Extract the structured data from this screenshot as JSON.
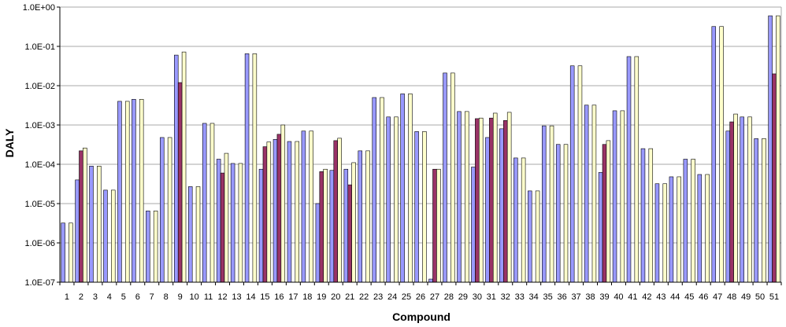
{
  "chart_data": {
    "type": "bar",
    "xlabel": "Compound",
    "ylabel": "DALY",
    "yscale": "log",
    "ylim": [
      1e-07,
      1
    ],
    "y_ticks": [
      1e-07,
      1e-06,
      1e-05,
      0.0001,
      0.001,
      0.01,
      0.1,
      1
    ],
    "y_tick_labels": [
      "1.0E-07",
      "1.0E-06",
      "1.0E-05",
      "1.0E-04",
      "1.0E-03",
      "1.0E-02",
      "1.0E-01",
      "1.0E+00"
    ],
    "grid": "horizontal",
    "legend": "none",
    "categories": [
      "1",
      "2",
      "3",
      "4",
      "5",
      "6",
      "7",
      "8",
      "9",
      "10",
      "11",
      "12",
      "13",
      "14",
      "15",
      "16",
      "17",
      "18",
      "19",
      "20",
      "21",
      "22",
      "23",
      "24",
      "25",
      "26",
      "27",
      "28",
      "29",
      "30",
      "31",
      "32",
      "33",
      "34",
      "35",
      "36",
      "37",
      "38",
      "39",
      "40",
      "41",
      "42",
      "43",
      "44",
      "45",
      "46",
      "47",
      "48",
      "49",
      "50",
      "51"
    ],
    "series": [
      {
        "color": "#9999ff",
        "values": [
          3.2e-06,
          4e-05,
          9e-05,
          2.2e-05,
          0.004,
          0.0045,
          6.5e-06,
          0.00048,
          0.06,
          2.7e-05,
          0.0011,
          0.000135,
          0.000105,
          0.065,
          7.5e-05,
          0.00043,
          0.00038,
          0.0007,
          1e-05,
          7e-05,
          7.5e-05,
          0.00022,
          0.005,
          0.0016,
          0.0062,
          0.00068,
          1.2e-07,
          0.021,
          0.0022,
          8.5e-05,
          0.00048,
          0.0008,
          0.000145,
          2.1e-05,
          0.00095,
          0.00032,
          0.032,
          0.0032,
          6.2e-05,
          0.0023,
          0.055,
          0.00025,
          3.2e-05,
          4.8e-05,
          0.000135,
          5.5e-05,
          0.32,
          0.0007,
          0.0016,
          0.00045,
          0.6
        ]
      },
      {
        "color": "#993366",
        "values": [
          null,
          0.00022,
          null,
          null,
          null,
          null,
          null,
          null,
          0.012,
          null,
          null,
          6e-05,
          null,
          null,
          0.00028,
          0.00058,
          null,
          null,
          6.5e-05,
          0.0004,
          3e-05,
          null,
          null,
          null,
          null,
          null,
          7.5e-05,
          null,
          null,
          0.00145,
          0.0015,
          0.0013,
          null,
          null,
          null,
          null,
          null,
          null,
          0.00032,
          null,
          null,
          null,
          null,
          null,
          null,
          null,
          null,
          0.0012,
          null,
          null,
          0.02
        ]
      },
      {
        "color": "#ffffcc",
        "values": [
          3.2e-06,
          0.00026,
          9e-05,
          2.2e-05,
          0.004,
          0.0045,
          6.5e-06,
          0.00048,
          0.072,
          2.7e-05,
          0.0011,
          0.00019,
          0.000105,
          0.065,
          0.00037,
          0.001,
          0.00038,
          0.0007,
          7.5e-05,
          0.00046,
          0.00011,
          0.00022,
          0.005,
          0.0016,
          0.0062,
          0.00068,
          7.5e-05,
          0.021,
          0.0022,
          0.0015,
          0.002,
          0.0021,
          0.000145,
          2.1e-05,
          0.00095,
          0.00032,
          0.032,
          0.0032,
          0.0004,
          0.0023,
          0.055,
          0.00025,
          3.2e-05,
          4.8e-05,
          0.000135,
          5.5e-05,
          0.32,
          0.0019,
          0.0016,
          0.00045,
          0.6
        ]
      }
    ]
  }
}
